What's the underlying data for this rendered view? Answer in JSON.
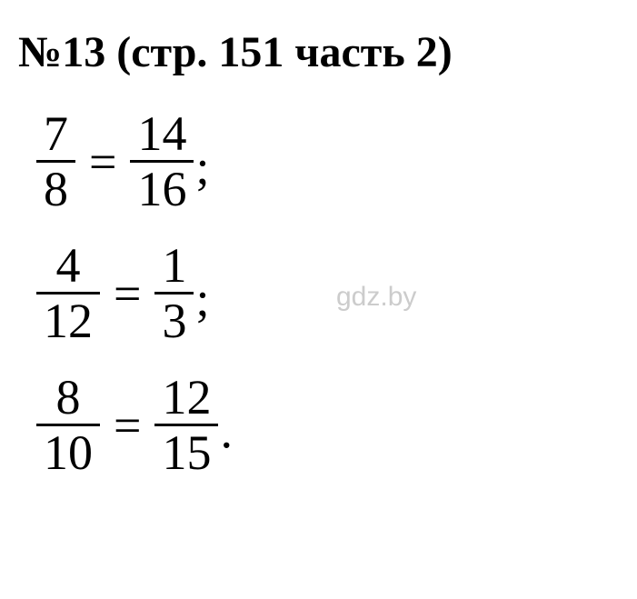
{
  "title": "№13 (стр. 151 часть 2)",
  "watermark": "gdz.by",
  "colors": {
    "text": "#000000",
    "background": "#ffffff",
    "watermark": "#cccccc",
    "fraction_bar": "#000000"
  },
  "typography": {
    "title_fontsize": 48,
    "title_weight": "bold",
    "equation_fontsize": 54,
    "watermark_fontsize": 30,
    "font_family": "Times New Roman"
  },
  "equations": [
    {
      "left_num": "7",
      "left_den": "8",
      "right_num": "14",
      "right_den": "16",
      "terminator": ";"
    },
    {
      "left_num": "4",
      "left_den": "12",
      "right_num": "1",
      "right_den": "3",
      "terminator": ";"
    },
    {
      "left_num": "8",
      "left_den": "10",
      "right_num": "12",
      "right_den": "15",
      "terminator": "."
    }
  ]
}
